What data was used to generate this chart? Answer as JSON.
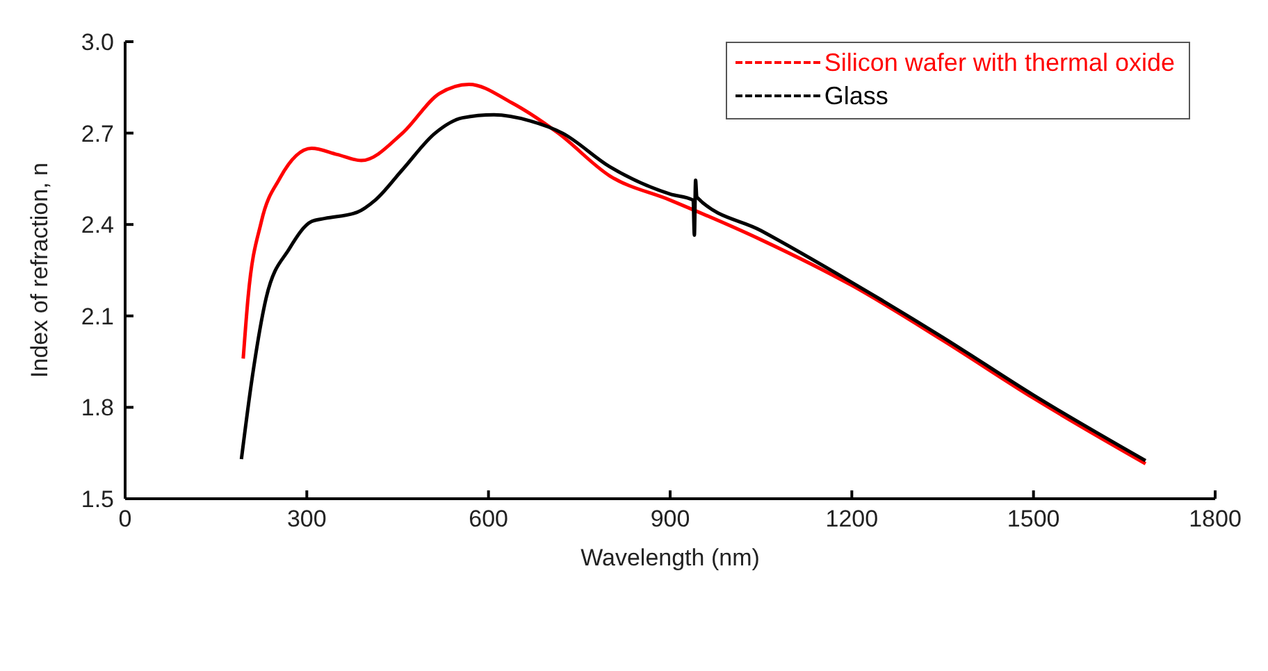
{
  "chart_data": {
    "type": "line",
    "xlabel": "Wavelength (nm)",
    "ylabel": "Index of refraction, n",
    "xlim": [
      0,
      1800
    ],
    "xticks": [
      0,
      300,
      600,
      900,
      1200,
      1500,
      1800
    ],
    "ylim": [
      1.5,
      3.0
    ],
    "yticks": [
      {
        "value": 1.5,
        "label": "1.5"
      },
      {
        "value": 1.8,
        "label": "1.8"
      },
      {
        "value": 2.1,
        "label": "2.1"
      },
      {
        "value": 2.4,
        "label": "2.4"
      },
      {
        "value": 2.7,
        "label": "2.7"
      },
      {
        "value": 3.0,
        "label": "3.0"
      }
    ],
    "grid": false,
    "legend": "top right",
    "marker": "none",
    "line_style": "solid",
    "series": [
      {
        "name": "Silicon wafer with thermal oxide",
        "color": "#ff0000",
        "x": [
          195,
          203,
          225,
          255,
          308,
          350,
          390,
          458,
          519,
          568,
          638,
          715,
          800,
          900,
          1050,
          1200,
          1350,
          1500,
          1685
        ],
        "values": [
          1.96,
          2.16,
          2.41,
          2.55,
          2.65,
          2.63,
          2.61,
          2.7,
          2.83,
          2.86,
          2.8,
          2.7,
          2.56,
          2.48,
          2.35,
          2.2,
          2.02,
          1.83,
          1.615
        ]
      },
      {
        "name": "Glass",
        "color": "#000000",
        "x": [
          192,
          210,
          233,
          271,
          308,
          330,
          383,
          413,
          458,
          512,
          557,
          609,
          669,
          722,
          800,
          900,
          938,
          940,
          942,
          944,
          1050,
          1200,
          1350,
          1500,
          1685
        ],
        "values": [
          1.63,
          1.9,
          2.16,
          2.32,
          2.41,
          2.42,
          2.44,
          2.48,
          2.58,
          2.7,
          2.75,
          2.76,
          2.74,
          2.7,
          2.59,
          2.5,
          2.48,
          2.365,
          2.545,
          2.49,
          2.38,
          2.21,
          2.03,
          1.84,
          1.625
        ]
      }
    ]
  }
}
